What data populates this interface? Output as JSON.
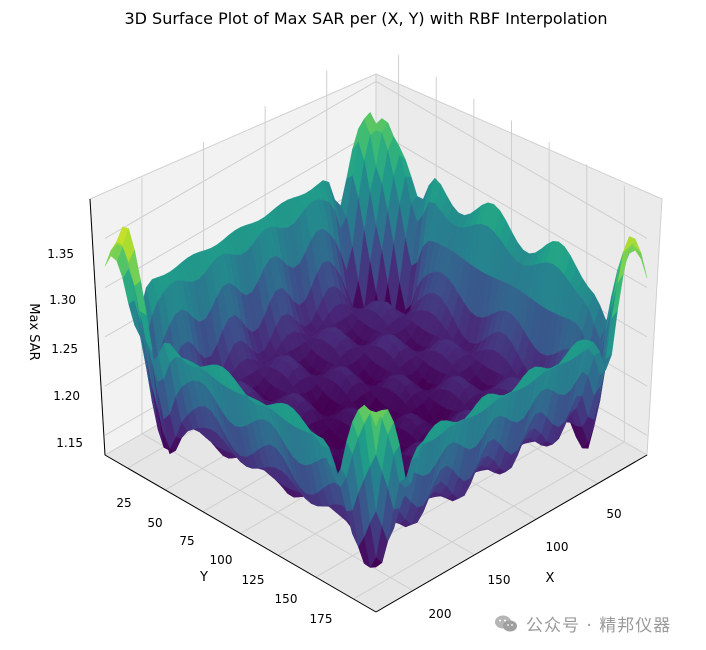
{
  "chart_data": {
    "type": "surface3d",
    "title": "3D Surface Plot of Max SAR per (X, Y) with RBF Interpolation",
    "xlabel": "X",
    "ylabel": "Y",
    "zlabel": "Max SAR",
    "x_range": [
      10,
      230
    ],
    "y_range": [
      10,
      190
    ],
    "z_range": [
      1.13,
      1.39
    ],
    "x_ticks": [
      "50",
      "100",
      "150",
      "200"
    ],
    "y_ticks": [
      "25",
      "50",
      "75",
      "100",
      "125",
      "150",
      "175"
    ],
    "z_ticks": [
      "1.15",
      "1.20",
      "1.25",
      "1.30",
      "1.35"
    ],
    "colormap": "viridis",
    "grid": true,
    "peaks": [
      {
        "x": 20,
        "y": 20,
        "z": 1.36
      },
      {
        "x": 20,
        "y": 185,
        "z": 1.37
      },
      {
        "x": 225,
        "y": 20,
        "z": 1.38
      },
      {
        "x": 225,
        "y": 185,
        "z": 1.34
      }
    ],
    "edge_level": 1.28,
    "center_level": 1.17
  },
  "watermark": {
    "text": "公众号 · 精邦仪器",
    "icon": "wechat-icon"
  }
}
